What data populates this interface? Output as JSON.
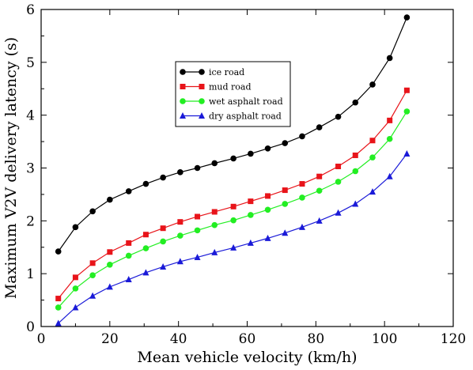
{
  "chart_data": {
    "type": "line",
    "title": "",
    "xlabel": "Mean vehicle velocity (km/h)",
    "ylabel": "Maximum  V2V delivery latency (s)",
    "xlim": [
      0,
      120
    ],
    "ylim": [
      0,
      6
    ],
    "xticks": [
      0,
      20,
      40,
      60,
      80,
      100,
      120
    ],
    "yticks": [
      0,
      1,
      2,
      3,
      4,
      5,
      6
    ],
    "grid": false,
    "legend_position": "upper-center",
    "x": [
      5,
      10,
      15,
      20,
      25,
      30,
      35,
      40,
      45,
      50,
      55,
      60,
      65,
      70,
      75,
      80,
      85,
      90,
      95,
      100,
      105
    ],
    "series": [
      {
        "name": "ice road",
        "color": "#000000",
        "marker": "circle",
        "x": [
          5,
          10,
          15,
          20,
          25.5,
          30.5,
          35.5,
          40.5,
          45.5,
          50.5,
          56,
          61,
          66,
          71,
          76,
          81,
          86.5,
          91.5,
          96.5,
          101.5,
          106.5
        ],
        "values": [
          1.42,
          1.88,
          2.18,
          2.4,
          2.56,
          2.7,
          2.82,
          2.92,
          3.0,
          3.09,
          3.18,
          3.27,
          3.37,
          3.47,
          3.6,
          3.77,
          3.97,
          4.24,
          4.58,
          5.08,
          5.85
        ]
      },
      {
        "name": "mud road",
        "color": "#e8141a",
        "marker": "square",
        "x": [
          5,
          10,
          15,
          20,
          25.5,
          30.5,
          35.5,
          40.5,
          45.5,
          50.5,
          56,
          61,
          66,
          71,
          76,
          81,
          86.5,
          91.5,
          96.5,
          101.5,
          106.5
        ],
        "values": [
          0.53,
          0.93,
          1.2,
          1.41,
          1.58,
          1.74,
          1.86,
          1.98,
          2.08,
          2.17,
          2.27,
          2.37,
          2.47,
          2.58,
          2.7,
          2.84,
          3.03,
          3.24,
          3.52,
          3.9,
          4.47
        ]
      },
      {
        "name": "wet asphalt road",
        "color": "#22ee22",
        "marker": "circle",
        "x": [
          5,
          10,
          15,
          20,
          25.5,
          30.5,
          35.5,
          40.5,
          45.5,
          50.5,
          56,
          61,
          66,
          71,
          76,
          81,
          86.5,
          91.5,
          96.5,
          101.5,
          106.5
        ],
        "values": [
          0.36,
          0.72,
          0.97,
          1.17,
          1.34,
          1.48,
          1.61,
          1.72,
          1.82,
          1.92,
          2.01,
          2.11,
          2.21,
          2.32,
          2.44,
          2.57,
          2.74,
          2.94,
          3.2,
          3.55,
          4.07
        ]
      },
      {
        "name": "dry asphalt road",
        "color": "#1a1ad8",
        "marker": "triangle",
        "x": [
          5,
          10,
          15,
          20,
          25.5,
          30.5,
          35.5,
          40.5,
          45.5,
          50.5,
          56,
          61,
          66,
          71,
          76,
          81,
          86.5,
          91.5,
          96.5,
          101.5,
          106.5
        ],
        "values": [
          0.06,
          0.36,
          0.58,
          0.75,
          0.89,
          1.02,
          1.13,
          1.23,
          1.31,
          1.4,
          1.49,
          1.58,
          1.67,
          1.77,
          1.88,
          2.0,
          2.15,
          2.32,
          2.55,
          2.84,
          3.27
        ]
      }
    ]
  }
}
